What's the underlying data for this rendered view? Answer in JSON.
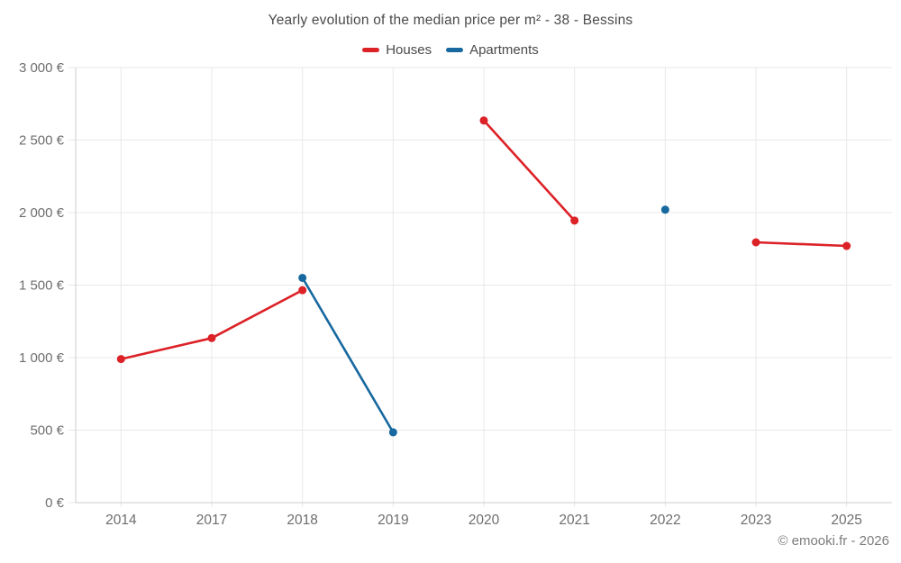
{
  "footer": {
    "text": "© emooki.fr - 2026"
  },
  "colors": {
    "houses": "#dc2127",
    "apartments": "#17689f",
    "grid": "#e8e8e8",
    "axis": "#cccccc",
    "tick_text": "#6e6e6e",
    "title_text": "#4a4a4a",
    "footer_text": "#7d7d7d",
    "background": "#ffffff"
  },
  "chart_data": {
    "type": "line",
    "title": "Yearly evolution of the median price per m² - 38 - Bessins",
    "categories": [
      "2014",
      "2017",
      "2018",
      "2019",
      "2020",
      "2021",
      "2022",
      "2023",
      "2025"
    ],
    "series": [
      {
        "name": "Houses",
        "color": "#dc2127",
        "values": [
          990,
          1135,
          1465,
          null,
          2635,
          1945,
          null,
          1795,
          1770
        ]
      },
      {
        "name": "Apartments",
        "color": "#17689f",
        "values": [
          null,
          null,
          1550,
          485,
          null,
          null,
          2020,
          null,
          null
        ]
      }
    ],
    "xlabel": "",
    "ylabel": "",
    "ylim": [
      0,
      3000
    ],
    "ytick_step": 500,
    "ytick_labels": [
      "0 €",
      "500 €",
      "1 000 €",
      "1 500 €",
      "2 000 €",
      "2 500 €",
      "3 000 €"
    ],
    "grid": true,
    "legend_position": "top",
    "line_breaks_on_missing": true
  }
}
